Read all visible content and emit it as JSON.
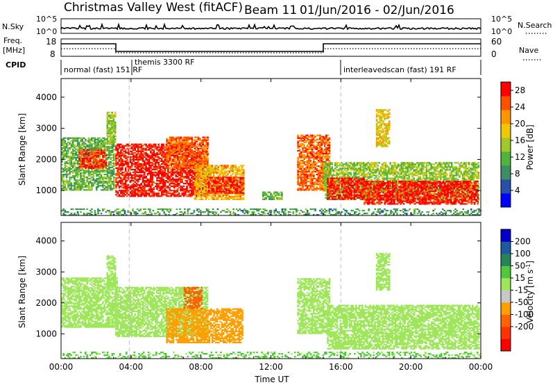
{
  "header": {
    "title": "Christmas Valley West (fitACF)",
    "beam": "Beam 11",
    "dates": "01/Jun/2016 - 02/Jun/2016"
  },
  "top_panels": {
    "nsky_label": "N.Sky",
    "nsky_ticks": [
      "10^5",
      "10^0"
    ],
    "nsearch_label": "N.Search",
    "nsearch_ticks": [
      "10^5",
      "10^0"
    ],
    "freq_label_1": "Freq.",
    "freq_label_2": "[MHz]",
    "freq_ticks": [
      "18",
      "8"
    ],
    "nave_label": "Nave",
    "nave_ticks": [
      "60",
      "0"
    ],
    "cpid_label": "CPID",
    "cpid_segments": [
      {
        "label": "normal (fast) 151 RF",
        "start_h": 0.0
      },
      {
        "label": "themis 3300 RF",
        "start_h": 3.9
      },
      {
        "label": "interleavedscan (fast) 191 RF",
        "start_h": 16.0
      }
    ]
  },
  "colors": {
    "power_scale": [
      "#0000ff",
      "#2850a8",
      "#3c8c64",
      "#50b43c",
      "#a0c828",
      "#f0c800",
      "#ff9600",
      "#ff5000",
      "#ff0000"
    ],
    "velocity_scale": [
      "#0000c8",
      "#1e5aa0",
      "#28825a",
      "#50c83c",
      "#9ee65a",
      "#c8c8c8",
      "#ffa000",
      "#ff6400",
      "#ff3200",
      "#ff0000"
    ],
    "ground_scatter": "#b4b4b4",
    "dash": "#c0c0c0"
  },
  "power_colorbar": {
    "label": "Power [dB]",
    "ticks": [
      "4",
      "8",
      "12",
      "16",
      "20",
      "24",
      "28"
    ]
  },
  "velocity_colorbar": {
    "label": "Velocity [m s",
    "label_sup": "-1",
    "label_end": "]",
    "ticks": [
      "200",
      "100",
      "50",
      "15",
      "-15",
      "-50",
      "-100",
      "-200"
    ]
  },
  "chart_data": [
    {
      "type": "heatmap",
      "title": "Power",
      "xlabel": "Time UT",
      "ylabel": "Slant Range [km]",
      "xlim": [
        0,
        24
      ],
      "ylim": [
        200,
        4600
      ],
      "x_ticks": [
        "00:00",
        "04:00",
        "08:00",
        "12:00",
        "16:00",
        "20:00",
        "00:00"
      ],
      "y_ticks": [
        1000,
        2000,
        3000,
        4000
      ],
      "colorbar": {
        "label": "Power [dB]",
        "range": [
          0,
          30
        ]
      },
      "regions": [
        {
          "t0": 0.0,
          "t1": 3.0,
          "r0": 1000,
          "r1": 2700,
          "value": 12
        },
        {
          "t0": 1.0,
          "t1": 2.6,
          "r0": 1700,
          "r1": 2300,
          "value": 26
        },
        {
          "t0": 2.6,
          "t1": 3.1,
          "r0": 2500,
          "r1": 3500,
          "value": 14
        },
        {
          "t0": 3.1,
          "t1": 8.4,
          "r0": 800,
          "r1": 2500,
          "value": 28
        },
        {
          "t0": 6.0,
          "t1": 8.4,
          "r0": 1700,
          "r1": 2700,
          "value": 24
        },
        {
          "t0": 7.6,
          "t1": 10.4,
          "r0": 700,
          "r1": 1800,
          "value": 20
        },
        {
          "t0": 8.4,
          "t1": 10.4,
          "r0": 900,
          "r1": 1400,
          "value": 28
        },
        {
          "t0": 11.5,
          "t1": 12.6,
          "r0": 700,
          "r1": 950,
          "value": 12
        },
        {
          "t0": 13.5,
          "t1": 15.3,
          "r0": 1000,
          "r1": 2800,
          "value": 24
        },
        {
          "t0": 15.0,
          "t1": 23.9,
          "r0": 700,
          "r1": 1900,
          "value": 14
        },
        {
          "t0": 15.2,
          "t1": 17.3,
          "r0": 700,
          "r1": 1400,
          "value": 28
        },
        {
          "t0": 17.3,
          "t1": 23.8,
          "r0": 550,
          "r1": 1300,
          "value": 28
        },
        {
          "t0": 18.0,
          "t1": 18.8,
          "r0": 2400,
          "r1": 3600,
          "value": 18
        },
        {
          "t0": 0.0,
          "t1": 24.0,
          "r0": 200,
          "r1": 400,
          "value": 10
        }
      ]
    },
    {
      "type": "heatmap",
      "title": "Velocity",
      "xlabel": "Time UT",
      "ylabel": "Slant Range [km]",
      "xlim": [
        0,
        24
      ],
      "ylim": [
        200,
        4600
      ],
      "x_ticks": [
        "00:00",
        "04:00",
        "08:00",
        "12:00",
        "16:00",
        "20:00",
        "00:00"
      ],
      "y_ticks": [
        1000,
        2000,
        3000,
        4000
      ],
      "colorbar": {
        "label": "Velocity [m s-1]",
        "range": [
          -250,
          250
        ]
      },
      "regions": [
        {
          "t0": 0.0,
          "t1": 3.2,
          "r0": 1200,
          "r1": 2800,
          "value": 0
        },
        {
          "t0": 2.6,
          "t1": 3.1,
          "r0": 2500,
          "r1": 3500,
          "value": 0
        },
        {
          "t0": 3.1,
          "t1": 8.4,
          "r0": 900,
          "r1": 2500,
          "value": 0
        },
        {
          "t0": 6.0,
          "t1": 10.4,
          "r0": 700,
          "r1": 1800,
          "value": -60
        },
        {
          "t0": 7.0,
          "t1": 8.0,
          "r0": 1800,
          "r1": 2500,
          "value": -150
        },
        {
          "t0": 13.5,
          "t1": 15.3,
          "r0": 1000,
          "r1": 2800,
          "value": 0
        },
        {
          "t0": 15.2,
          "t1": 23.9,
          "r0": 500,
          "r1": 1900,
          "value": 0
        },
        {
          "t0": 18.0,
          "t1": 18.8,
          "r0": 2400,
          "r1": 3600,
          "value": 0
        },
        {
          "t0": 0.0,
          "t1": 24.0,
          "r0": 200,
          "r1": 400,
          "value": 20
        }
      ]
    }
  ]
}
